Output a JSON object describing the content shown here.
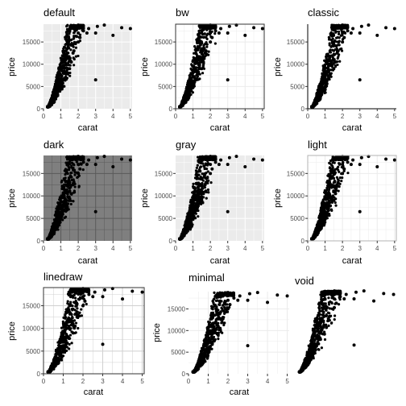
{
  "chart_data": [
    {
      "type": "scatter",
      "title": "default",
      "xlabel": "carat",
      "ylabel": "price",
      "xlim": [
        0,
        5.1
      ],
      "ylim": [
        0,
        19000
      ],
      "xticks": [
        0,
        1,
        2,
        3,
        4,
        5
      ],
      "yticks": [
        0,
        5000,
        10000,
        15000
      ],
      "ytick_labels": [
        "0",
        "5000",
        "10000",
        "15000"
      ],
      "theme": "default",
      "panel_background": "#ebebeb",
      "grid": true,
      "grid_color": "#ffffff",
      "frame": "none",
      "points": {
        "x": [
          0.25,
          0.3,
          0.35,
          0.4,
          0.5,
          0.6,
          0.7,
          0.75,
          0.8,
          0.9,
          1.0,
          1.0,
          1.05,
          1.1,
          1.2,
          1.2,
          1.3,
          1.5,
          1.5,
          1.6,
          1.7,
          1.75,
          2.0,
          2.0,
          2.0,
          2.1,
          2.2,
          2.3,
          2.5,
          2.6,
          3.0,
          3.0,
          3.1,
          3.5,
          4.0,
          4.5,
          5.0
        ],
        "y": [
          400,
          500,
          600,
          800,
          1300,
          1800,
          2500,
          2900,
          3200,
          4000,
          4800,
          6000,
          5500,
          6300,
          6800,
          8300,
          7800,
          9000,
          11000,
          10500,
          12500,
          13000,
          15000,
          17000,
          18800,
          16000,
          18500,
          17500,
          17000,
          18000,
          17000,
          6500,
          18500,
          18800,
          16500,
          18200,
          18000
        ]
      }
    },
    {
      "type": "scatter",
      "title": "bw",
      "xlabel": "carat",
      "ylabel": "price",
      "xlim": [
        0,
        5.1
      ],
      "ylim": [
        0,
        19000
      ],
      "xticks": [
        0,
        1,
        2,
        3,
        4,
        5
      ],
      "yticks": [
        0,
        5000,
        10000,
        15000
      ],
      "ytick_labels": [
        "0",
        "5000",
        "10000",
        "15000"
      ],
      "theme": "bw",
      "panel_background": "#ffffff",
      "grid": true,
      "grid_color": "#ebebeb",
      "frame": "box",
      "points": {
        "x": [
          0.25,
          0.3,
          0.35,
          0.4,
          0.5,
          0.6,
          0.7,
          0.75,
          0.8,
          0.9,
          1.0,
          1.0,
          1.05,
          1.1,
          1.2,
          1.2,
          1.3,
          1.5,
          1.5,
          1.6,
          1.7,
          1.75,
          2.0,
          2.0,
          2.0,
          2.1,
          2.2,
          2.3,
          2.5,
          2.6,
          3.0,
          3.0,
          3.1,
          3.5,
          4.0,
          4.5,
          5.0
        ],
        "y": [
          400,
          500,
          600,
          800,
          1300,
          1800,
          2500,
          2900,
          3200,
          4000,
          4800,
          6000,
          5500,
          6300,
          6800,
          8300,
          7800,
          9000,
          11000,
          10500,
          12500,
          13000,
          15000,
          17000,
          18800,
          16000,
          18500,
          17500,
          17000,
          18000,
          17000,
          6500,
          18500,
          18800,
          16500,
          18200,
          18000
        ]
      }
    },
    {
      "type": "scatter",
      "title": "classic",
      "xlabel": "carat",
      "ylabel": "price",
      "xlim": [
        0,
        5.1
      ],
      "ylim": [
        0,
        19000
      ],
      "xticks": [
        0,
        1,
        2,
        3,
        4,
        5
      ],
      "yticks": [
        0,
        5000,
        10000,
        15000
      ],
      "ytick_labels": [
        "0",
        "5000",
        "10000",
        "15000"
      ],
      "theme": "classic",
      "panel_background": "#ffffff",
      "grid": false,
      "grid_color": "#ffffff",
      "frame": "axes",
      "points": {
        "x": [
          0.25,
          0.3,
          0.35,
          0.4,
          0.5,
          0.6,
          0.7,
          0.75,
          0.8,
          0.9,
          1.0,
          1.0,
          1.05,
          1.1,
          1.2,
          1.2,
          1.3,
          1.5,
          1.5,
          1.6,
          1.7,
          1.75,
          2.0,
          2.0,
          2.0,
          2.1,
          2.2,
          2.3,
          2.5,
          2.6,
          3.0,
          3.0,
          3.1,
          3.5,
          4.0,
          4.5,
          5.0
        ],
        "y": [
          400,
          500,
          600,
          800,
          1300,
          1800,
          2500,
          2900,
          3200,
          4000,
          4800,
          6000,
          5500,
          6300,
          6800,
          8300,
          7800,
          9000,
          11000,
          10500,
          12500,
          13000,
          15000,
          17000,
          18800,
          16000,
          18500,
          17500,
          17000,
          18000,
          17000,
          6500,
          18500,
          18800,
          16500,
          18200,
          18000
        ]
      }
    },
    {
      "type": "scatter",
      "title": "dark",
      "xlabel": "carat",
      "ylabel": "price",
      "xlim": [
        0,
        5.1
      ],
      "ylim": [
        0,
        19000
      ],
      "xticks": [
        0,
        1,
        2,
        3,
        4,
        5
      ],
      "yticks": [
        0,
        5000,
        10000,
        15000
      ],
      "ytick_labels": [
        "0",
        "5000",
        "10000",
        "15000"
      ],
      "theme": "dark",
      "panel_background": "#7f7f7f",
      "grid": true,
      "grid_color": "#5a5a5a",
      "frame": "none",
      "points": {
        "x": [
          0.25,
          0.3,
          0.35,
          0.4,
          0.5,
          0.6,
          0.7,
          0.75,
          0.8,
          0.9,
          1.0,
          1.0,
          1.05,
          1.1,
          1.2,
          1.2,
          1.3,
          1.5,
          1.5,
          1.6,
          1.7,
          1.75,
          2.0,
          2.0,
          2.0,
          2.1,
          2.2,
          2.3,
          2.5,
          2.6,
          3.0,
          3.0,
          3.1,
          3.5,
          4.0,
          4.5,
          5.0
        ],
        "y": [
          400,
          500,
          600,
          800,
          1300,
          1800,
          2500,
          2900,
          3200,
          4000,
          4800,
          6000,
          5500,
          6300,
          6800,
          8300,
          7800,
          9000,
          11000,
          10500,
          12500,
          13000,
          15000,
          17000,
          18800,
          16000,
          18500,
          17500,
          17000,
          18000,
          17000,
          6500,
          18500,
          18800,
          16500,
          18200,
          18000
        ]
      }
    },
    {
      "type": "scatter",
      "title": "gray",
      "xlabel": "carat",
      "ylabel": "price",
      "xlim": [
        0,
        5.1
      ],
      "ylim": [
        0,
        19000
      ],
      "xticks": [
        0,
        1,
        2,
        3,
        4,
        5
      ],
      "yticks": [
        0,
        5000,
        10000,
        15000
      ],
      "ytick_labels": [
        "0",
        "5000",
        "10000",
        "15000"
      ],
      "theme": "gray",
      "panel_background": "#ebebeb",
      "grid": true,
      "grid_color": "#ffffff",
      "frame": "none",
      "points": {
        "x": [
          0.25,
          0.3,
          0.35,
          0.4,
          0.5,
          0.6,
          0.7,
          0.75,
          0.8,
          0.9,
          1.0,
          1.0,
          1.05,
          1.1,
          1.2,
          1.2,
          1.3,
          1.5,
          1.5,
          1.6,
          1.7,
          1.75,
          2.0,
          2.0,
          2.0,
          2.1,
          2.2,
          2.3,
          2.5,
          2.6,
          3.0,
          3.0,
          3.1,
          3.5,
          4.0,
          4.5,
          5.0
        ],
        "y": [
          400,
          500,
          600,
          800,
          1300,
          1800,
          2500,
          2900,
          3200,
          4000,
          4800,
          6000,
          5500,
          6300,
          6800,
          8300,
          7800,
          9000,
          11000,
          10500,
          12500,
          13000,
          15000,
          17000,
          18800,
          16000,
          18500,
          17500,
          17000,
          18000,
          17000,
          6500,
          18500,
          18800,
          16500,
          18200,
          18000
        ]
      }
    },
    {
      "type": "scatter",
      "title": "light",
      "xlabel": "carat",
      "ylabel": "price",
      "xlim": [
        0,
        5.1
      ],
      "ylim": [
        0,
        19000
      ],
      "xticks": [
        0,
        1,
        2,
        3,
        4,
        5
      ],
      "yticks": [
        0,
        5000,
        10000,
        15000
      ],
      "ytick_labels": [
        "0",
        "5000",
        "10000",
        "15000"
      ],
      "theme": "light",
      "panel_background": "#ffffff",
      "grid": true,
      "grid_color": "#ebebeb",
      "frame": "box-light",
      "points": {
        "x": [
          0.25,
          0.3,
          0.35,
          0.4,
          0.5,
          0.6,
          0.7,
          0.75,
          0.8,
          0.9,
          1.0,
          1.0,
          1.05,
          1.1,
          1.2,
          1.2,
          1.3,
          1.5,
          1.5,
          1.6,
          1.7,
          1.75,
          2.0,
          2.0,
          2.0,
          2.1,
          2.2,
          2.3,
          2.5,
          2.6,
          3.0,
          3.0,
          3.1,
          3.5,
          4.0,
          4.5,
          5.0
        ],
        "y": [
          400,
          500,
          600,
          800,
          1300,
          1800,
          2500,
          2900,
          3200,
          4000,
          4800,
          6000,
          5500,
          6300,
          6800,
          8300,
          7800,
          9000,
          11000,
          10500,
          12500,
          13000,
          15000,
          17000,
          18800,
          16000,
          18500,
          17500,
          17000,
          18000,
          17000,
          6500,
          18500,
          18800,
          16500,
          18200,
          18000
        ]
      }
    },
    {
      "type": "scatter",
      "title": "linedraw",
      "xlabel": "carat",
      "ylabel": "price",
      "xlim": [
        0,
        5.1
      ],
      "ylim": [
        0,
        19000
      ],
      "xticks": [
        0,
        1,
        2,
        3,
        4,
        5
      ],
      "yticks": [
        0,
        5000,
        10000,
        15000
      ],
      "ytick_labels": [
        "0",
        "5000",
        "10000",
        "15000"
      ],
      "theme": "linedraw",
      "panel_background": "#ffffff",
      "grid": true,
      "grid_color": "#d0d0d0",
      "frame": "box",
      "points": {
        "x": [
          0.25,
          0.3,
          0.35,
          0.4,
          0.5,
          0.6,
          0.7,
          0.75,
          0.8,
          0.9,
          1.0,
          1.0,
          1.05,
          1.1,
          1.2,
          1.2,
          1.3,
          1.5,
          1.5,
          1.6,
          1.7,
          1.75,
          2.0,
          2.0,
          2.0,
          2.1,
          2.2,
          2.3,
          2.5,
          2.6,
          3.0,
          3.0,
          3.1,
          3.5,
          4.0,
          4.5,
          5.0
        ],
        "y": [
          400,
          500,
          600,
          800,
          1300,
          1800,
          2500,
          2900,
          3200,
          4000,
          4800,
          6000,
          5500,
          6300,
          6800,
          8300,
          7800,
          9000,
          11000,
          10500,
          12500,
          13000,
          15000,
          17000,
          18800,
          16000,
          18500,
          17500,
          17000,
          18000,
          17000,
          6500,
          18500,
          18800,
          16500,
          18200,
          18000
        ]
      }
    },
    {
      "type": "scatter",
      "title": "minimal",
      "xlabel": "carat",
      "ylabel": "price",
      "xlim": [
        0,
        5.1
      ],
      "ylim": [
        0,
        19000
      ],
      "xticks": [
        0,
        1,
        2,
        3,
        4,
        5
      ],
      "yticks": [
        0,
        5000,
        10000,
        15000
      ],
      "ytick_labels": [
        "0",
        "5000",
        "10000",
        "15000"
      ],
      "theme": "minimal",
      "panel_background": "#ffffff",
      "grid": true,
      "grid_color": "#ebebeb",
      "frame": "none",
      "points": {
        "x": [
          0.25,
          0.3,
          0.35,
          0.4,
          0.5,
          0.6,
          0.7,
          0.75,
          0.8,
          0.9,
          1.0,
          1.0,
          1.05,
          1.1,
          1.2,
          1.2,
          1.3,
          1.5,
          1.5,
          1.6,
          1.7,
          1.75,
          2.0,
          2.0,
          2.0,
          2.1,
          2.2,
          2.3,
          2.5,
          2.6,
          3.0,
          3.0,
          3.1,
          3.5,
          4.0,
          4.5,
          5.0
        ],
        "y": [
          400,
          500,
          600,
          800,
          1300,
          1800,
          2500,
          2900,
          3200,
          4000,
          4800,
          6000,
          5500,
          6300,
          6800,
          8300,
          7800,
          9000,
          11000,
          10500,
          12500,
          13000,
          15000,
          17000,
          18800,
          16000,
          18500,
          17500,
          17000,
          18000,
          17000,
          6500,
          18500,
          18800,
          16500,
          18200,
          18000
        ]
      }
    },
    {
      "type": "scatter",
      "title": "void",
      "xlabel": "",
      "ylabel": "",
      "xlim": [
        0,
        5.1
      ],
      "ylim": [
        0,
        19000
      ],
      "xticks": [],
      "yticks": [],
      "ytick_labels": [],
      "theme": "void",
      "panel_background": "#ffffff",
      "grid": false,
      "grid_color": "#ffffff",
      "frame": "none",
      "points": {
        "x": [
          0.25,
          0.3,
          0.35,
          0.4,
          0.5,
          0.6,
          0.7,
          0.75,
          0.8,
          0.9,
          1.0,
          1.0,
          1.05,
          1.1,
          1.2,
          1.2,
          1.3,
          1.5,
          1.5,
          1.6,
          1.7,
          1.75,
          2.0,
          2.0,
          2.0,
          2.1,
          2.2,
          2.3,
          2.5,
          2.6,
          3.0,
          3.0,
          3.1,
          3.5,
          4.0,
          4.5,
          5.0
        ],
        "y": [
          400,
          500,
          600,
          800,
          1300,
          1800,
          2500,
          2900,
          3200,
          4000,
          4800,
          6000,
          5500,
          6300,
          6800,
          8300,
          7800,
          9000,
          11000,
          10500,
          12500,
          13000,
          15000,
          17000,
          18800,
          16000,
          18500,
          17500,
          17000,
          18000,
          17000,
          6500,
          18500,
          18800,
          16500,
          18200,
          18000
        ]
      }
    }
  ]
}
